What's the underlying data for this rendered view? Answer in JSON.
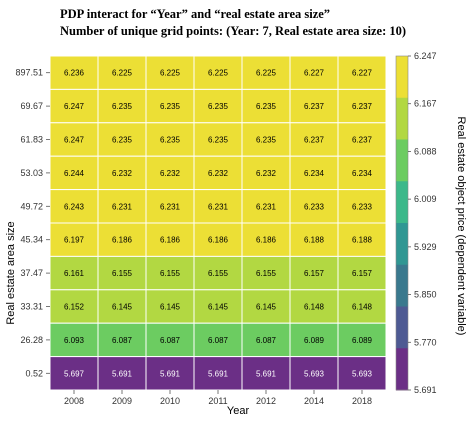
{
  "chart_data": {
    "type": "heatmap",
    "title": "PDP interact for “Year” and “real estate area size”",
    "subtitle": "Number of unique grid points: (Year: 7, Real estate area size: 10)",
    "xlabel": "Year",
    "ylabel": "Real estate area size",
    "colorbar_label": "Real estate object price (dependent variable)",
    "x": [
      "2008",
      "2009",
      "2010",
      "2011",
      "2012",
      "2014",
      "2018"
    ],
    "y": [
      "897.51",
      "69.67",
      "61.83",
      "53.03",
      "49.72",
      "45.34",
      "37.47",
      "33.31",
      "26.28",
      "0.52"
    ],
    "values": [
      [
        6.236,
        6.225,
        6.225,
        6.225,
        6.225,
        6.227,
        6.227
      ],
      [
        6.247,
        6.235,
        6.235,
        6.235,
        6.235,
        6.237,
        6.237
      ],
      [
        6.247,
        6.235,
        6.235,
        6.235,
        6.235,
        6.237,
        6.237
      ],
      [
        6.244,
        6.232,
        6.232,
        6.232,
        6.232,
        6.234,
        6.234
      ],
      [
        6.243,
        6.231,
        6.231,
        6.231,
        6.231,
        6.233,
        6.233
      ],
      [
        6.197,
        6.186,
        6.186,
        6.186,
        6.186,
        6.188,
        6.188
      ],
      [
        6.161,
        6.155,
        6.155,
        6.155,
        6.155,
        6.157,
        6.157
      ],
      [
        6.152,
        6.145,
        6.145,
        6.145,
        6.145,
        6.148,
        6.148
      ],
      [
        6.093,
        6.087,
        6.087,
        6.087,
        6.087,
        6.089,
        6.089
      ],
      [
        5.697,
        5.691,
        5.691,
        5.691,
        5.691,
        5.693,
        5.693
      ]
    ],
    "colorbar_ticks": [
      "6.247",
      "6.167",
      "6.088",
      "6.009",
      "5.929",
      "5.850",
      "5.770",
      "5.691"
    ],
    "colorbar_colors": [
      "#ecdf35",
      "#b2d842",
      "#6ccc61",
      "#3cb88a",
      "#309793",
      "#3a798e",
      "#4e5a93",
      "#6b2f86"
    ]
  }
}
